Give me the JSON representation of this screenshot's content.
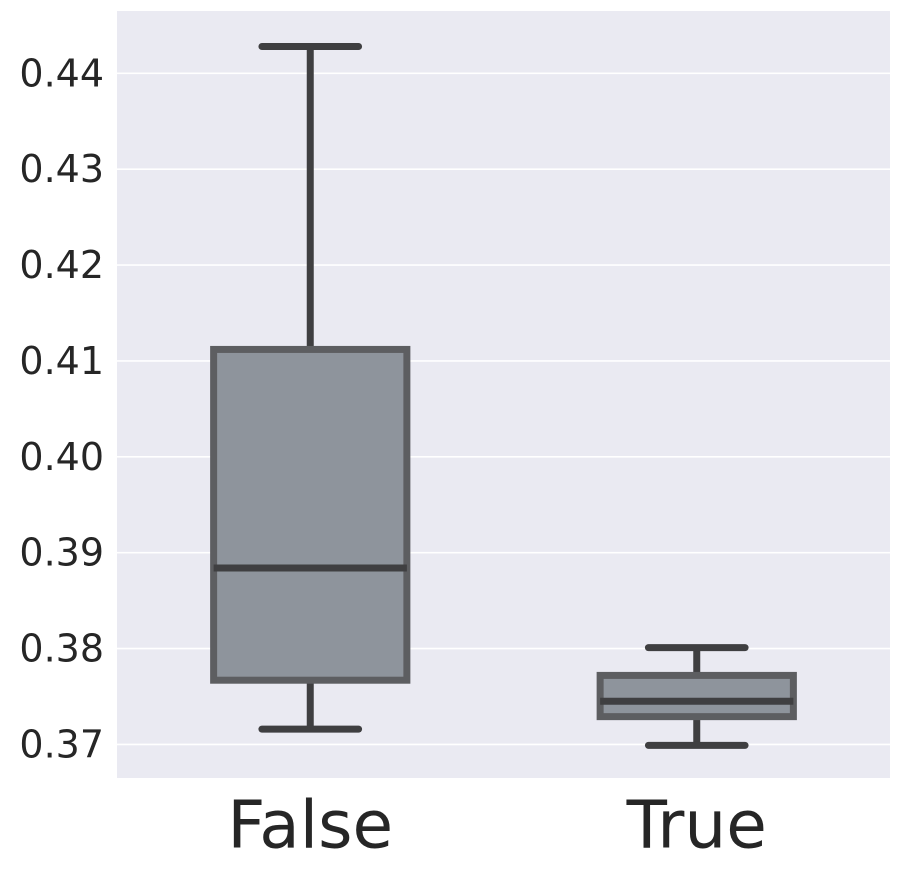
{
  "chart_data": {
    "type": "box",
    "categories": [
      "False",
      "True"
    ],
    "boxes": [
      {
        "category": "False",
        "whisker_low": 0.3716,
        "q1": 0.3767,
        "median": 0.3884,
        "q3": 0.4112,
        "whisker_high": 0.4428
      },
      {
        "category": "True",
        "whisker_low": 0.3699,
        "q1": 0.3729,
        "median": 0.3745,
        "q3": 0.3772,
        "whisker_high": 0.3801
      }
    ],
    "ylim": [
      0.3665,
      0.4465
    ],
    "yticks": [
      0.37,
      0.38,
      0.39,
      0.4,
      0.41,
      0.42,
      0.43,
      0.44
    ],
    "ytick_labels": [
      "0.37",
      "0.38",
      "0.39",
      "0.40",
      "0.41",
      "0.42",
      "0.43",
      "0.44"
    ],
    "title": "",
    "xlabel": "",
    "ylabel": "",
    "grid": "horizontal",
    "colors": {
      "background": "#eaeaf2",
      "grid": "#ffffff",
      "box_fill": "#8e949c",
      "box_edge": "#5d5e61",
      "line": "#3f3f41",
      "text": "#262626"
    }
  }
}
